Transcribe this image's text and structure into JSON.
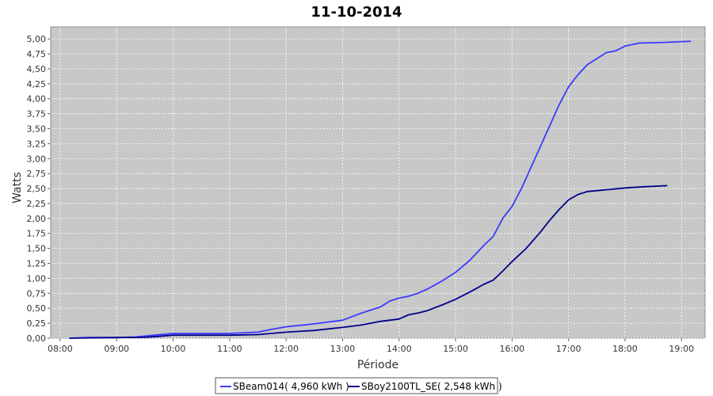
{
  "chart_data": {
    "type": "line",
    "title": "11-10-2014",
    "xlabel": "Période",
    "ylabel": "Watts",
    "x_range": [
      "07:50",
      "19:25"
    ],
    "xlim": [
      7.833,
      19.417
    ],
    "ylim": [
      0,
      5.2
    ],
    "x_ticks": [
      "08:00",
      "09:00",
      "10:00",
      "11:00",
      "12:00",
      "13:00",
      "14:00",
      "15:00",
      "16:00",
      "17:00",
      "18:00",
      "19:00"
    ],
    "y_ticks": [
      "0,00",
      "0,25",
      "0,50",
      "0,75",
      "1,00",
      "1,25",
      "1,50",
      "1,75",
      "2,00",
      "2,25",
      "2,50",
      "2,75",
      "3,00",
      "3,25",
      "3,50",
      "3,75",
      "4,00",
      "4,25",
      "4,50",
      "4,75",
      "5,00"
    ],
    "grid": true,
    "legend_position": "bottom",
    "plot_background": "#c8c8c8",
    "series": [
      {
        "name": "SBeam014( 4,960 kWh )",
        "color": "#3a3aff",
        "points": [
          [
            "08:10",
            0.0
          ],
          [
            "08:30",
            0.01
          ],
          [
            "09:00",
            0.01
          ],
          [
            "09:20",
            0.02
          ],
          [
            "09:40",
            0.05
          ],
          [
            "10:00",
            0.08
          ],
          [
            "10:30",
            0.08
          ],
          [
            "11:00",
            0.08
          ],
          [
            "11:30",
            0.1
          ],
          [
            "11:45",
            0.15
          ],
          [
            "12:00",
            0.19
          ],
          [
            "12:30",
            0.24
          ],
          [
            "13:00",
            0.3
          ],
          [
            "13:10",
            0.36
          ],
          [
            "13:20",
            0.42
          ],
          [
            "13:30",
            0.47
          ],
          [
            "13:40",
            0.52
          ],
          [
            "13:50",
            0.62
          ],
          [
            "14:00",
            0.67
          ],
          [
            "14:10",
            0.7
          ],
          [
            "14:20",
            0.75
          ],
          [
            "14:30",
            0.82
          ],
          [
            "14:45",
            0.95
          ],
          [
            "15:00",
            1.1
          ],
          [
            "15:15",
            1.3
          ],
          [
            "15:30",
            1.55
          ],
          [
            "15:40",
            1.7
          ],
          [
            "15:50",
            2.0
          ],
          [
            "16:00",
            2.2
          ],
          [
            "16:10",
            2.5
          ],
          [
            "16:20",
            2.85
          ],
          [
            "16:30",
            3.2
          ],
          [
            "16:40",
            3.55
          ],
          [
            "16:50",
            3.9
          ],
          [
            "17:00",
            4.2
          ],
          [
            "17:10",
            4.4
          ],
          [
            "17:20",
            4.57
          ],
          [
            "17:30",
            4.67
          ],
          [
            "17:40",
            4.77
          ],
          [
            "17:50",
            4.8
          ],
          [
            "18:00",
            4.88
          ],
          [
            "18:15",
            4.93
          ],
          [
            "18:40",
            4.94
          ],
          [
            "19:10",
            4.96
          ]
        ]
      },
      {
        "name": "SBoy2100TL_SE( 2,548 kWh )",
        "color": "#00008b",
        "points": [
          [
            "08:10",
            0.0
          ],
          [
            "08:30",
            0.005
          ],
          [
            "09:00",
            0.01
          ],
          [
            "09:30",
            0.015
          ],
          [
            "09:45",
            0.03
          ],
          [
            "10:00",
            0.05
          ],
          [
            "10:30",
            0.05
          ],
          [
            "11:00",
            0.05
          ],
          [
            "11:30",
            0.06
          ],
          [
            "12:00",
            0.1
          ],
          [
            "12:30",
            0.13
          ],
          [
            "13:00",
            0.18
          ],
          [
            "13:20",
            0.22
          ],
          [
            "13:40",
            0.28
          ],
          [
            "14:00",
            0.32
          ],
          [
            "14:10",
            0.39
          ],
          [
            "14:20",
            0.42
          ],
          [
            "14:30",
            0.46
          ],
          [
            "14:45",
            0.55
          ],
          [
            "15:00",
            0.65
          ],
          [
            "15:15",
            0.77
          ],
          [
            "15:30",
            0.9
          ],
          [
            "15:40",
            0.97
          ],
          [
            "15:50",
            1.12
          ],
          [
            "16:00",
            1.28
          ],
          [
            "16:15",
            1.5
          ],
          [
            "16:30",
            1.77
          ],
          [
            "16:40",
            1.97
          ],
          [
            "16:50",
            2.15
          ],
          [
            "17:00",
            2.31
          ],
          [
            "17:10",
            2.4
          ],
          [
            "17:20",
            2.45
          ],
          [
            "17:40",
            2.48
          ],
          [
            "18:00",
            2.51
          ],
          [
            "18:20",
            2.53
          ],
          [
            "18:45",
            2.548
          ]
        ]
      }
    ]
  }
}
